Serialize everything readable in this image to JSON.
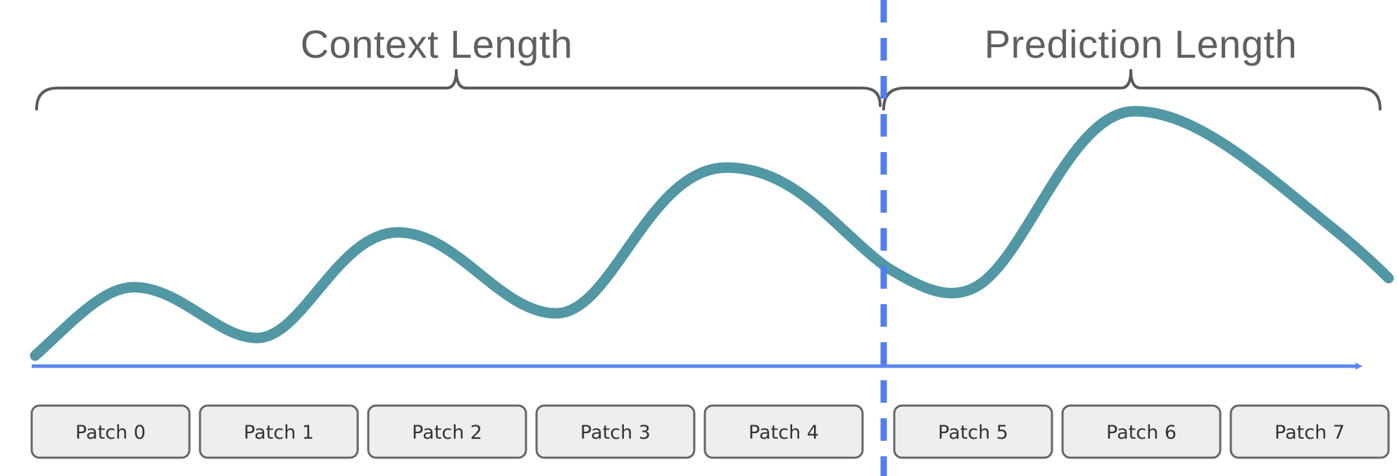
{
  "sections": {
    "context": {
      "label": "Context Length"
    },
    "prediction": {
      "label": "Prediction Length"
    }
  },
  "patches": [
    {
      "label": "Patch 0",
      "group": "context"
    },
    {
      "label": "Patch 1",
      "group": "context"
    },
    {
      "label": "Patch 2",
      "group": "context"
    },
    {
      "label": "Patch 3",
      "group": "context"
    },
    {
      "label": "Patch 4",
      "group": "context"
    },
    {
      "label": "Patch 5",
      "group": "prediction"
    },
    {
      "label": "Patch 6",
      "group": "prediction"
    },
    {
      "label": "Patch 7",
      "group": "prediction"
    }
  ],
  "colors": {
    "series_line": "#5297a4",
    "axis": "#5b84f1",
    "divider": "#4f7ef0",
    "brace": "#5a5a5a",
    "patch_fill": "#eeeeee",
    "patch_stroke": "#666666"
  }
}
